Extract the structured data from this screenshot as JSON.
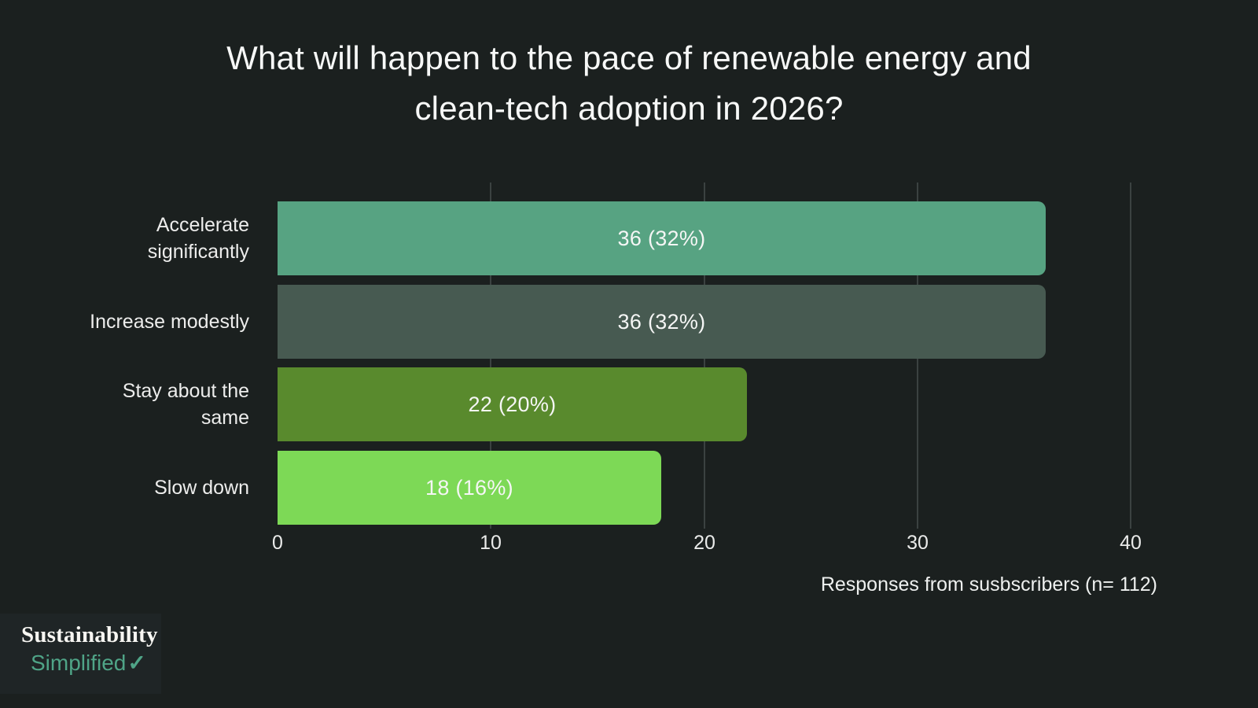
{
  "title": "What will happen to the pace of renewable energy and\nclean-tech adoption in 2026?",
  "chart_data": {
    "type": "bar",
    "orientation": "horizontal",
    "categories": [
      "Accelerate\nsignificantly",
      "Increase modestly",
      "Stay about the\nsame",
      "Slow down"
    ],
    "values": [
      36,
      36,
      22,
      18
    ],
    "value_labels": [
      "36 (32%)",
      "36 (32%)",
      "22 (20%)",
      "18 (16%)"
    ],
    "percentages": [
      32,
      32,
      20,
      16
    ],
    "bar_colors": [
      "#57a382",
      "#475a51",
      "#598a2d",
      "#7dd956"
    ],
    "xlabel": "Responses from susbscribers (n= 112)",
    "xlim": [
      0,
      40
    ],
    "xticks": [
      0,
      10,
      20,
      30,
      40
    ],
    "grid": "vertical",
    "legend": "none",
    "value_label_position": "center"
  },
  "colors": {
    "background": "#1b201f",
    "gridline": "#3b4241",
    "text": "#f5f6f5",
    "logo_green": "#4fa487"
  },
  "logo": {
    "line1": "Sustainability",
    "line2": "Simplified",
    "check": "✓"
  }
}
